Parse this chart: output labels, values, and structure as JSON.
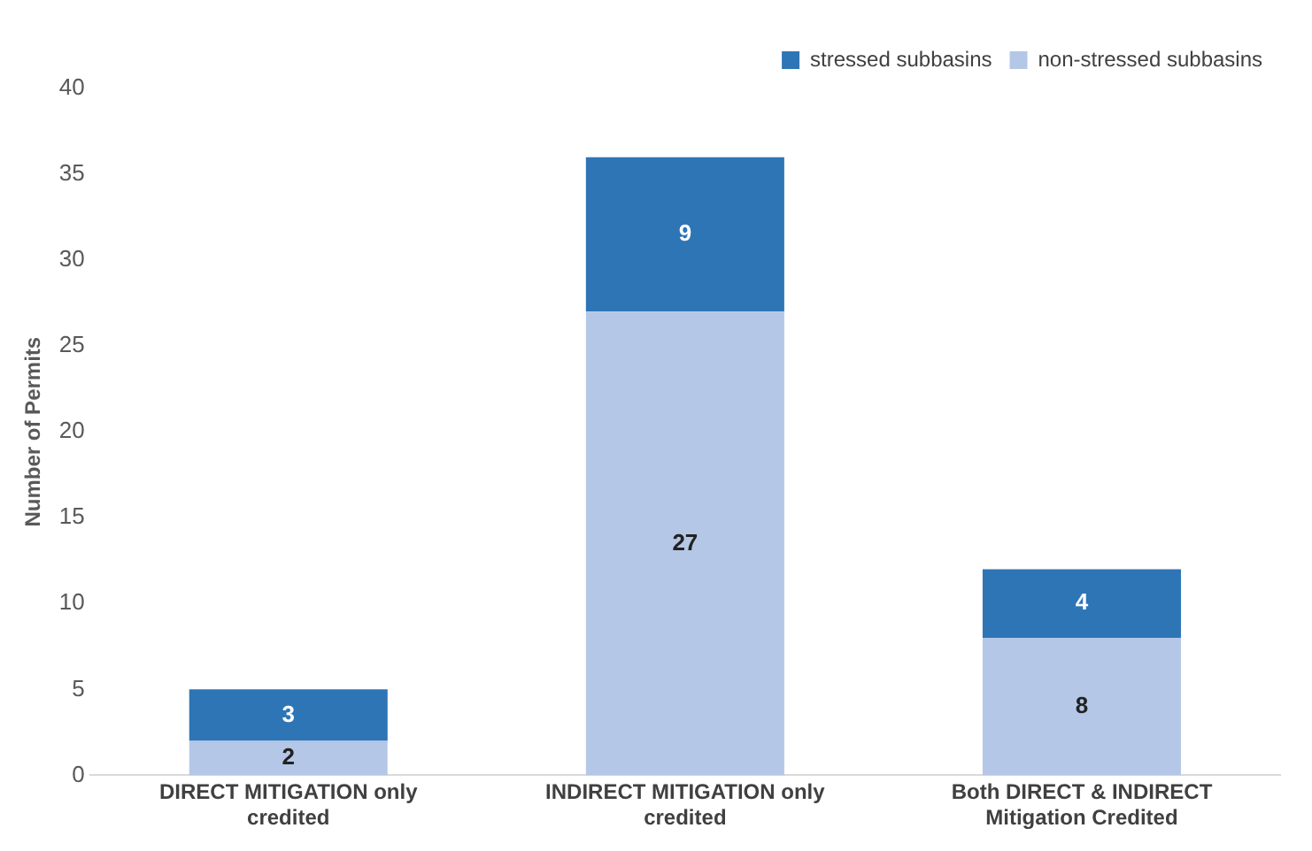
{
  "chart_data": {
    "type": "bar",
    "stacked": true,
    "ylabel": "Number of Permits",
    "categories": [
      "DIRECT MITIGATION only credited",
      "INDIRECT MITIGATION only credited",
      "Both DIRECT & INDIRECT Mitigation Credited"
    ],
    "series": [
      {
        "name": "non-stressed subbasins",
        "color": "#b4c7e7",
        "values": [
          2,
          27,
          8
        ]
      },
      {
        "name": "stressed subbasins",
        "color": "#2e75b6",
        "values": [
          3,
          9,
          4
        ]
      }
    ],
    "ylim": [
      0,
      40
    ],
    "yticks": [
      0,
      5,
      10,
      15,
      20,
      25,
      30,
      35,
      40
    ],
    "grid": false,
    "legend": "top right",
    "data_labels": true
  }
}
